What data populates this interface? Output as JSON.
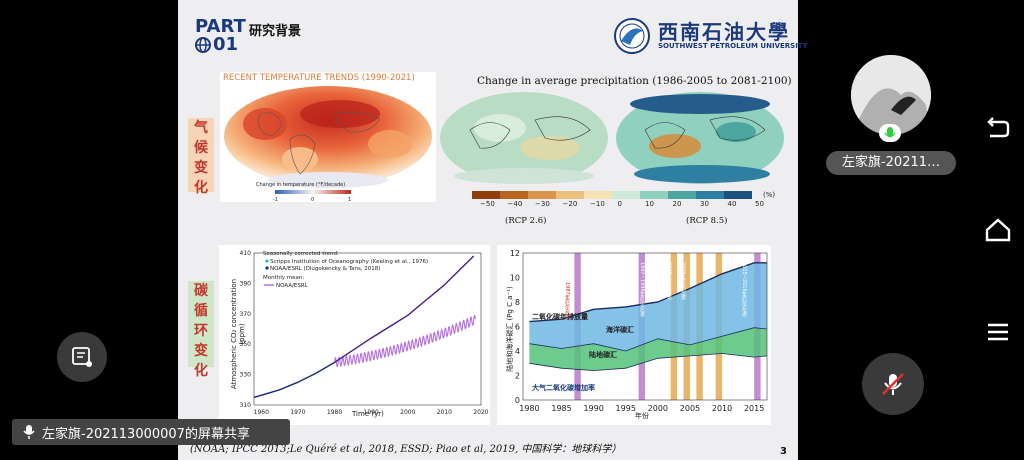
{
  "slide": {
    "part_label": "PART",
    "part_number": "01",
    "section_title": "研究背景",
    "university_cn": "西南石油大學",
    "university_en": "SOUTHWEST PETROLEUM UNIVERSITY",
    "tag_climate": "气候变化",
    "tag_carbon": "碳循环变化",
    "temp_title": "RECENT TEMPERATURE TRENDS (1990-2021)",
    "temp_legend_label": "Change in temperature (°F/decade)",
    "temp_tick_min": "-1",
    "temp_tick_mid": "0",
    "temp_tick_max": "1",
    "precip_title": "Change in average precipitation  (1986-2005  to 2081-2100)",
    "precip_ticks": [
      "−50",
      "−40",
      "−30",
      "−20",
      "−10",
      "0",
      "10",
      "20",
      "30",
      "40",
      "50"
    ],
    "precip_unit": "(%)",
    "rcp_left": "(RCP 2.6)",
    "rcp_right": "(RCP 8.5)",
    "co2_legend_title": "Seasonally corrected trend:",
    "co2_legend_s1": "Scripps Institution of Oceanography (Keeling et al., 1976)",
    "co2_legend_s2": "NOAA/ESRL (Dlugokencky & Tans, 2018)",
    "co2_legend_monthly": "Monthly mean:",
    "co2_legend_s3": "NOAA/ESRL",
    "co2_ylabel": "Atmospheric CO₂ concentration (ppm)",
    "co2_xlabel": "Time (yr)",
    "co2_yticks": [
      "410",
      "390",
      "370",
      "350",
      "330",
      "310"
    ],
    "co2_xticks": [
      "1960",
      "1970",
      "1980",
      "1990",
      "2000",
      "2010",
      "2020"
    ],
    "sink_ylabel": "陆地和海洋碳汇 (Pg C a⁻¹)",
    "sink_xlabel": "年份",
    "sink_yticks": [
      "12",
      "10",
      "8",
      "6",
      "4",
      "2",
      "0"
    ],
    "sink_xticks": [
      "1980",
      "1985",
      "1990",
      "1995",
      "2000",
      "2005",
      "2010",
      "2015"
    ],
    "sink_label_emission": "二氧化碳年排放量",
    "sink_label_ocean": "海洋碳汇",
    "sink_label_land": "陆地碳汇",
    "sink_label_growth": "大气二氧化碳增加率",
    "sink_event_1": "1987年厄尔尼诺",
    "sink_event_2": "1997~1998年厄尔尼诺",
    "sink_event_3": "2002年厄尔尼诺",
    "sink_event_4": "2004年厄尔尼诺",
    "sink_event_5": "2015~2016年厄尔尼诺",
    "caption": "(NOAA; IPCC 2013;Le Quéré et al, 2018, ESSD; Piao et al, 2019, 中国科学：地球科学）",
    "page_number": "3"
  },
  "overlay": {
    "share_text": "左家旗-202113000007的屏幕共享",
    "participant_name": "左家旗-20211…"
  },
  "chart_data": [
    {
      "type": "line",
      "title": "",
      "xlabel": "Time (yr)",
      "ylabel": "Atmospheric CO₂ concentration (ppm)",
      "xlim": [
        1958,
        2020
      ],
      "ylim": [
        310,
        410
      ],
      "series": [
        {
          "name": "Scripps Institution of Oceanography (Keeling et al., 1976)",
          "x": [
            1958,
            1965,
            1970,
            1975,
            1980
          ],
          "y": [
            315,
            320,
            325,
            331,
            338
          ]
        },
        {
          "name": "NOAA/ESRL",
          "x": [
            1980,
            1990,
            2000,
            2010,
            2018
          ],
          "y": [
            338,
            354,
            369,
            389,
            408
          ]
        }
      ]
    },
    {
      "type": "area",
      "xlabel": "年份",
      "ylabel": "陆地和海洋碳汇 (Pg C a⁻¹)",
      "ylim": [
        0,
        12
      ],
      "x": [
        1980,
        1985,
        1990,
        1995,
        2000,
        2005,
        2010,
        2015,
        2017
      ],
      "series": [
        {
          "name": "二氧化碳年排放量",
          "values": [
            6.4,
            6.6,
            7.4,
            7.6,
            8.0,
            9.1,
            10.3,
            11.2,
            11.2
          ]
        },
        {
          "name": "海洋碳汇",
          "values": [
            4.6,
            4.2,
            4.6,
            4.0,
            5.0,
            4.5,
            5.2,
            5.9,
            5.8
          ]
        },
        {
          "name": "陆地碳汇",
          "values": [
            3.0,
            2.6,
            2.4,
            2.6,
            3.4,
            3.6,
            3.8,
            3.5,
            3.6
          ]
        }
      ]
    }
  ]
}
